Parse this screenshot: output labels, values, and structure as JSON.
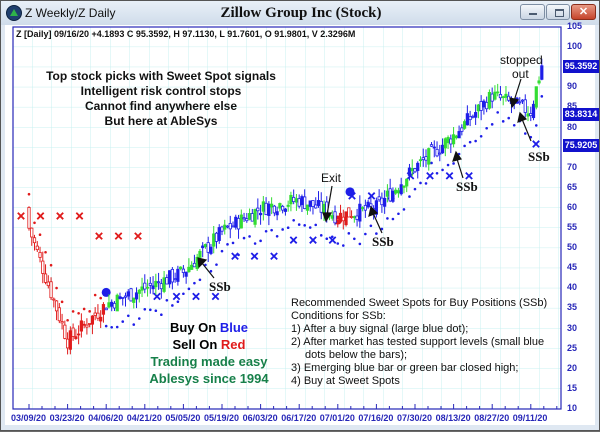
{
  "window": {
    "title": "Z Weekly/Z Daily",
    "chart_title": "Zillow Group Inc (Stock)",
    "buttons": {
      "minimize": "minimize",
      "maximize": "maximize",
      "close": "✕"
    }
  },
  "header": {
    "ohlc_line": "Z [Daily] 09/16/20  +4.1893 C 95.3592, H 97.1130, L 91.7601, O 91.9801, V 2.3296M"
  },
  "promo": {
    "lines": [
      "Top stock picks with Sweet Spot signals",
      "Intelligent risk control stops",
      "Cannot find anywhere else",
      "But here at AbleSys"
    ]
  },
  "legend": {
    "buy_prefix": "Buy On ",
    "buy_color_word": "Blue",
    "sell_prefix": "Sell On ",
    "sell_color_word": "Red",
    "tagline1": "Trading made easy",
    "tagline2": "Ablesys since 1994"
  },
  "conditions": {
    "title": "Recommended Sweet Spots for Buy Positions (SSb)",
    "subtitle": "Conditions for SSb:",
    "items": [
      "1) After a buy signal (large blue dot);",
      "2) After market has tested support levels (small blue",
      "dots below the bars);",
      "3) Emerging blue bar or green bar closed high;",
      "4) Buy at Sweet Spots"
    ]
  },
  "annotations": {
    "exit": "Exit",
    "stopped_out_1": "stopped",
    "stopped_out_2": "out",
    "ssb": "SSb"
  },
  "price_tags": {
    "last": "95.3592",
    "stop": "83.8314",
    "support": "75.9205"
  },
  "colors": {
    "buy": "#1e1ee8",
    "sell": "#e01b1b",
    "up_bar": "#33dd33",
    "axis": "#2727b8",
    "grid": "#c8f0f0",
    "tagline": "#17804a"
  },
  "chart_data": {
    "type": "candlestick",
    "title": "Zillow Group Inc (Stock)",
    "symbol": "Z",
    "timeframe": "Daily",
    "xlabel": "",
    "ylabel": "",
    "ylim": [
      10,
      105
    ],
    "yticks": [
      10,
      15,
      20,
      25,
      30,
      35,
      40,
      45,
      50,
      55,
      60,
      65,
      70,
      75,
      80,
      85,
      90,
      95,
      100,
      105
    ],
    "xticks": [
      "03/09/20",
      "03/23/20",
      "04/06/20",
      "04/21/20",
      "05/05/20",
      "05/19/20",
      "06/03/20",
      "06/17/20",
      "07/01/20",
      "07/16/20",
      "07/30/20",
      "08/13/20",
      "08/27/20",
      "09/11/20"
    ],
    "grid": true,
    "last_bar": {
      "date": "09/16/20",
      "change": 4.1893,
      "close": 95.3592,
      "high": 97.113,
      "low": 91.7601,
      "open": 91.9801,
      "volume": "2.3296M"
    },
    "approx_closes_by_tick": [
      {
        "date": "03/09/20",
        "close": 55
      },
      {
        "date": "03/23/20",
        "close": 27
      },
      {
        "date": "04/06/20",
        "close": 36
      },
      {
        "date": "04/21/20",
        "close": 40
      },
      {
        "date": "05/05/20",
        "close": 44
      },
      {
        "date": "05/19/20",
        "close": 54
      },
      {
        "date": "06/03/20",
        "close": 60
      },
      {
        "date": "06/17/20",
        "close": 62
      },
      {
        "date": "07/01/20",
        "close": 58
      },
      {
        "date": "07/16/20",
        "close": 60
      },
      {
        "date": "07/30/20",
        "close": 70
      },
      {
        "date": "08/13/20",
        "close": 78
      },
      {
        "date": "08/27/20",
        "close": 88
      },
      {
        "date": "09/11/20",
        "close": 84
      }
    ],
    "reference_levels": [
      {
        "label": "last close",
        "value": 95.3592
      },
      {
        "label": "stop",
        "value": 83.8314
      },
      {
        "label": "support",
        "value": 75.9205
      }
    ],
    "weekly_markers": {
      "sell_x_red": [
        58,
        58,
        58,
        58,
        53,
        53,
        53
      ],
      "buy_x_blue": [
        38,
        38,
        38,
        38,
        48,
        48,
        48,
        52,
        52,
        52,
        63,
        63,
        63,
        68,
        68,
        68,
        68
      ]
    },
    "signals": [
      {
        "type": "buy",
        "label": "large blue dot",
        "date": "04/06/20",
        "price": 39
      },
      {
        "type": "sell",
        "label": "Exit",
        "date": "07/01/20",
        "price": 57
      },
      {
        "type": "buy",
        "label": "large blue dot",
        "date": "07/07/20",
        "price": 64
      },
      {
        "type": "SSb",
        "date": "05/19/20",
        "price": 45
      },
      {
        "type": "SSb",
        "date": "07/16/20",
        "price": 52
      },
      {
        "type": "SSb",
        "date": "08/13/20",
        "price": 72
      },
      {
        "type": "stopped out",
        "date": "09/04/20",
        "price": 85
      },
      {
        "type": "SSb",
        "date": "09/11/20",
        "price": 80
      }
    ]
  }
}
